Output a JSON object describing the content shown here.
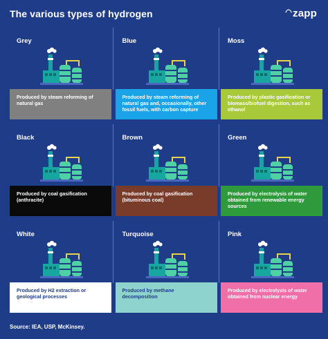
{
  "header": {
    "title": "The various types of hydrogen",
    "logo": "zapp"
  },
  "types": [
    {
      "name": "Grey",
      "description": "Produced by steam reforming of natural gas",
      "color": "#808080",
      "text_color": "#ffffff"
    },
    {
      "name": "Blue",
      "description": "Produced by steam reforming of natural gas and, occasionally, other fossil fuels, with carbon capture",
      "color": "#1aa3e8",
      "text_color": "#ffffff"
    },
    {
      "name": "Moss",
      "description": "Produced by plastic gasification or biomass/biofuel digestion, such as ethanol",
      "color": "#a8c93a",
      "text_color": "#ffffff"
    },
    {
      "name": "Black",
      "description": "Produced by coal gasification (anthracite)",
      "color": "#0a0a0a",
      "text_color": "#ffffff"
    },
    {
      "name": "Brown",
      "description": "Produced by coal gasification (bituminous coal)",
      "color": "#7a3c2a",
      "text_color": "#ffffff"
    },
    {
      "name": "Green",
      "description": "Produced by electrolysis of water obtained from renewable energy sources",
      "color": "#2e9a3c",
      "text_color": "#ffffff"
    },
    {
      "name": "White",
      "description": "Produced by H2 extraction or geological processes",
      "color": "#ffffff",
      "text_color": "#1f3c88"
    },
    {
      "name": "Turquoise",
      "description": "Produced by methane decomposition",
      "color": "#8fd3cf",
      "text_color": "#1f3c88"
    },
    {
      "name": "Pink",
      "description": "Produced by electrolysis of water obtained from nuclear energy",
      "color": "#f06fa8",
      "text_color": "#ffffff"
    }
  ],
  "icon": "factory-icon",
  "footer": {
    "source": "Source: IEA, USP, McKinsey."
  }
}
